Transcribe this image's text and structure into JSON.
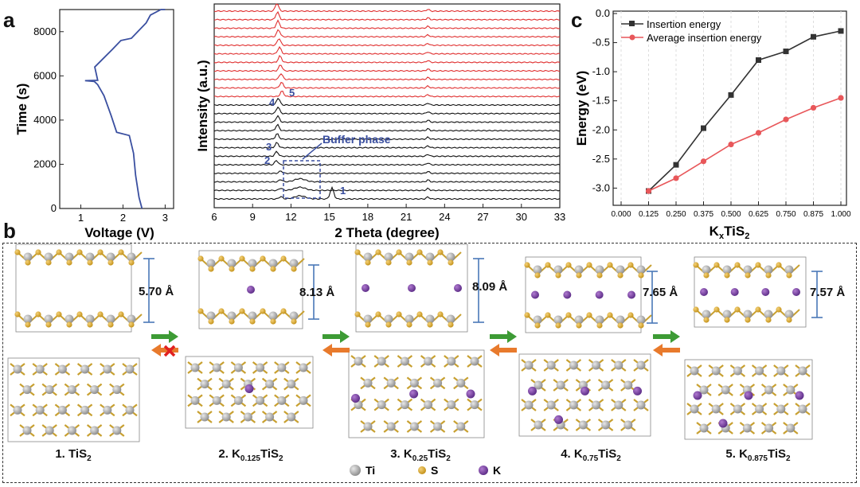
{
  "panels": {
    "a": "a",
    "b": "b",
    "c": "c"
  },
  "chart_a": {
    "type": "line",
    "xlabel": "Voltage (V)",
    "ylabel": "Time (s)",
    "xlim": [
      0.5,
      3.2
    ],
    "ylim": [
      0,
      9000
    ],
    "xticks": [
      "1",
      "2",
      "3"
    ],
    "yticks": [
      "0",
      "2000",
      "4000",
      "6000",
      "8000"
    ],
    "points": [
      [
        2.45,
        0
      ],
      [
        2.38,
        500
      ],
      [
        2.3,
        1500
      ],
      [
        2.25,
        2500
      ],
      [
        2.15,
        3300
      ],
      [
        1.85,
        3450
      ],
      [
        1.72,
        4200
      ],
      [
        1.55,
        5100
      ],
      [
        1.4,
        5600
      ],
      [
        1.32,
        5750
      ],
      [
        1.1,
        5780
      ],
      [
        1.4,
        5800
      ],
      [
        1.33,
        6400
      ],
      [
        1.75,
        7200
      ],
      [
        1.95,
        7600
      ],
      [
        2.2,
        7700
      ],
      [
        2.35,
        8000
      ],
      [
        2.55,
        8400
      ],
      [
        2.65,
        8750
      ],
      [
        2.9,
        9000
      ],
      [
        3.0,
        9000
      ]
    ]
  },
  "chart_b": {
    "type": "line",
    "xlabel": "2 Theta (degree)",
    "ylabel": "Intensity (a.u.)",
    "xlim": [
      6,
      33
    ],
    "xticks": [
      "6",
      "9",
      "12",
      "15",
      "18",
      "21",
      "24",
      "27",
      "30",
      "33"
    ],
    "red_count": 11,
    "black_count": 12,
    "annotations": {
      "buffer": "Buffer phase",
      "p1": "1",
      "p2": "2",
      "p3": "3",
      "p4": "4",
      "p5": "5"
    }
  },
  "chart_data": {
    "type": "line",
    "xlabel": "KxTiS2",
    "ylabel": "Energy (eV)",
    "xlim": [
      0,
      1.0
    ],
    "ylim": [
      -3.5,
      0
    ],
    "xticks": [
      "0.000",
      "0.125",
      "0.250",
      "0.375",
      "0.500",
      "0.625",
      "0.750",
      "0.875",
      "1.000"
    ],
    "yticks": [
      "0.0",
      "-0.5",
      "-1.0",
      "-1.5",
      "-2.0",
      "-2.5",
      "-3.0"
    ],
    "x": [
      0.125,
      0.25,
      0.375,
      0.5,
      0.625,
      0.75,
      0.875,
      1.0
    ],
    "series": [
      {
        "name": "Insertion energy",
        "color": "#333333",
        "values": [
          -3.05,
          -2.6,
          -1.97,
          -1.4,
          -0.8,
          -0.65,
          -0.4,
          -0.3
        ]
      },
      {
        "name": "Average insertion energy",
        "color": "#e8575a",
        "values": [
          -3.05,
          -2.83,
          -2.54,
          -2.25,
          -2.05,
          -1.82,
          -1.62,
          -1.45
        ]
      }
    ]
  },
  "structures": [
    {
      "name_pre": "1. TiS",
      "sub1": "",
      "mid": "",
      "sub2": "2",
      "dist": "5.70 Å"
    },
    {
      "name_pre": "2. K",
      "sub1": "0.125",
      "mid": "TiS",
      "sub2": "2",
      "dist": "8.13 Å"
    },
    {
      "name_pre": "3. K",
      "sub1": "0.25",
      "mid": "TiS",
      "sub2": "2",
      "dist": "8.09 Å"
    },
    {
      "name_pre": "4. K",
      "sub1": "0.75",
      "mid": "TiS",
      "sub2": "2",
      "dist": "7.65 Å"
    },
    {
      "name_pre": "5. K",
      "sub1": "0.875",
      "mid": "TiS",
      "sub2": "2",
      "dist": "7.57 Å"
    }
  ],
  "legend": {
    "ti": "Ti",
    "s": "S",
    "k": "K"
  },
  "colors": {
    "ti": "#9a9a9a",
    "s": "#d4a52a",
    "k": "#7a3fa0",
    "arrow_fwd": "#3d9b35",
    "arrow_back": "#e87a2c",
    "bracket": "#4a78b8",
    "curve_a": "#3a4fa0"
  }
}
